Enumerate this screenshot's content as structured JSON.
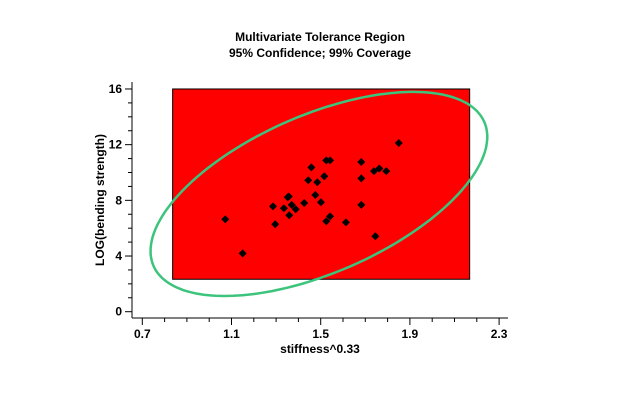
{
  "chart_data": {
    "type": "scatter",
    "title": "Multivariate Tolerance Region",
    "subtitle": "95% Confidence; 99% Coverage",
    "xlabel": "stiffness^0.33",
    "ylabel": "LOG(bending strength)",
    "xlim": [
      0.655,
      2.33
    ],
    "ylim": [
      -0.45,
      16.4
    ],
    "xticks": [
      "0.7",
      "1.1",
      "1.5",
      "1.9",
      "2.3"
    ],
    "yticks": [
      "0",
      "4",
      "8",
      "12",
      "16"
    ],
    "grid": false,
    "colors": {
      "region": "#FF0000",
      "ellipse": "#3CC47C",
      "points": "#000000"
    },
    "tolerance_rectangle": {
      "x": [
        0.836,
        2.168
      ],
      "y": [
        2.33,
        16.0
      ]
    },
    "tolerance_ellipse": {
      "center": [
        1.492,
        8.46
      ],
      "x_halfwidth": 0.755,
      "y_halfheight": 7.33,
      "correlation": 0.56
    },
    "points": [
      [
        1.072,
        6.64
      ],
      [
        1.15,
        4.19
      ],
      [
        1.286,
        7.57
      ],
      [
        1.296,
        6.28
      ],
      [
        1.335,
        7.43
      ],
      [
        1.352,
        8.22
      ],
      [
        1.357,
        8.28
      ],
      [
        1.359,
        6.93
      ],
      [
        1.37,
        7.67
      ],
      [
        1.388,
        7.36
      ],
      [
        1.426,
        7.81
      ],
      [
        1.444,
        9.44
      ],
      [
        1.458,
        10.37
      ],
      [
        1.476,
        8.38
      ],
      [
        1.485,
        9.3
      ],
      [
        1.501,
        7.86
      ],
      [
        1.516,
        9.73
      ],
      [
        1.525,
        10.87
      ],
      [
        1.525,
        6.5
      ],
      [
        1.542,
        10.87
      ],
      [
        1.542,
        6.85
      ],
      [
        1.613,
        6.42
      ],
      [
        1.682,
        10.75
      ],
      [
        1.682,
        9.58
      ],
      [
        1.682,
        7.67
      ],
      [
        1.739,
        10.1
      ],
      [
        1.745,
        5.42
      ],
      [
        1.763,
        10.29
      ],
      [
        1.794,
        10.1
      ],
      [
        1.85,
        12.12
      ]
    ]
  }
}
